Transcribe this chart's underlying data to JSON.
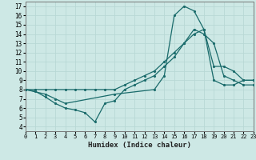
{
  "xlabel": "Humidex (Indice chaleur)",
  "xlim": [
    0,
    23
  ],
  "ylim": [
    3.5,
    17.5
  ],
  "xticks": [
    0,
    1,
    2,
    3,
    4,
    5,
    6,
    7,
    8,
    9,
    10,
    11,
    12,
    13,
    14,
    15,
    16,
    17,
    18,
    19,
    20,
    21,
    22,
    23
  ],
  "yticks": [
    4,
    5,
    6,
    7,
    8,
    9,
    10,
    11,
    12,
    13,
    14,
    15,
    16,
    17
  ],
  "bg_color": "#cde8e5",
  "grid_color": "#b8d8d5",
  "line_color": "#1a6b6b",
  "line1_x": [
    0,
    1,
    2,
    3,
    4,
    5,
    6,
    7,
    8,
    9,
    10,
    11,
    12,
    13,
    14,
    15,
    16,
    17,
    18,
    19,
    20,
    21,
    22,
    23
  ],
  "line1_y": [
    8.0,
    7.8,
    7.2,
    6.5,
    6.0,
    5.8,
    5.5,
    4.5,
    6.5,
    6.8,
    8.0,
    8.5,
    9.0,
    9.5,
    10.5,
    11.5,
    13.0,
    14.5,
    14.0,
    13.0,
    9.5,
    9.0,
    8.5,
    8.5
  ],
  "line2_x": [
    0,
    1,
    2,
    3,
    4,
    5,
    6,
    7,
    8,
    9,
    10,
    11,
    12,
    13,
    14,
    15,
    16,
    17,
    18,
    19,
    20,
    21,
    22,
    23
  ],
  "line2_y": [
    8.0,
    8.0,
    8.0,
    8.0,
    8.0,
    8.0,
    8.0,
    8.0,
    8.0,
    8.0,
    8.5,
    9.0,
    9.5,
    10.0,
    11.0,
    12.0,
    13.0,
    14.0,
    14.5,
    9.0,
    8.5,
    8.5,
    9.0,
    9.0
  ],
  "line3_x": [
    0,
    2,
    3,
    4,
    9,
    13,
    14,
    15,
    16,
    17,
    18,
    19,
    20,
    21,
    22,
    23
  ],
  "line3_y": [
    8.0,
    7.5,
    7.0,
    6.5,
    7.5,
    8.0,
    9.5,
    16.0,
    17.0,
    16.5,
    14.5,
    10.5,
    10.5,
    10.0,
    9.0,
    9.0
  ]
}
